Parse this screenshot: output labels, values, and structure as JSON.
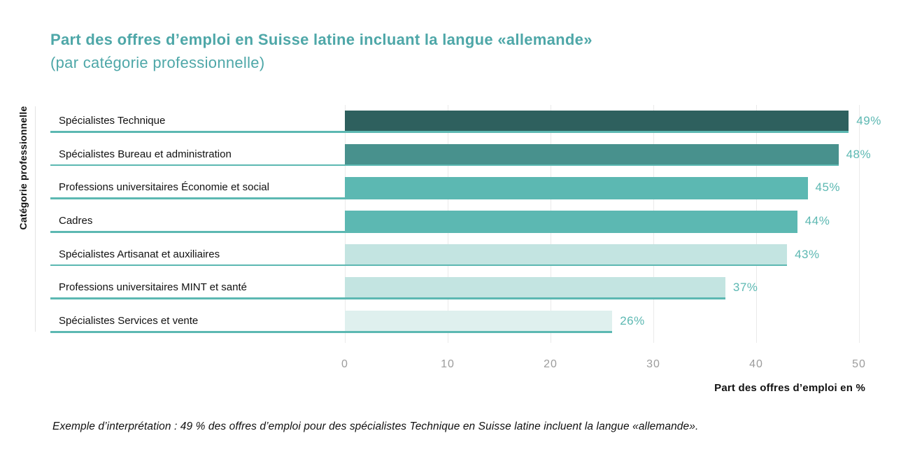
{
  "title": "Part des offres d’emploi en Suisse latine incluant la langue «allemande»",
  "subtitle": "(par catégorie professionnelle)",
  "note": "Exemple d’interprétation : 49 % des offres d’emploi pour des spécialistes Technique en Suisse latine incluent la langue «allemande».",
  "colors": {
    "title": "#4ea7a8",
    "accent_teal": "#5cb8b2",
    "underline": "#5cb8b2",
    "grid": "#eaeaea",
    "tick_text": "#9c9c9c",
    "category_text": "#111111",
    "note_text": "#111111"
  },
  "chart_data": {
    "type": "bar",
    "orientation": "horizontal",
    "title": "Part des offres d’emploi en Suisse latine incluant la langue «allemande»",
    "subtitle": "(par catégorie professionnelle)",
    "categories": [
      "Spécialistes Technique",
      "Spécialistes Bureau et administration",
      "Professions universitaires Économie et social",
      "Cadres",
      "Spécialistes Artisanat et auxiliaires",
      "Professions universitaires MINT et santé",
      "Spécialistes Services et vente"
    ],
    "values": [
      49,
      48,
      45,
      44,
      43,
      37,
      26
    ],
    "value_labels": [
      "49%",
      "48%",
      "45%",
      "44%",
      "43%",
      "37%",
      "26%"
    ],
    "bar_colors": [
      "#2e605e",
      "#48918d",
      "#5cb8b2",
      "#5cb8b2",
      "#c3e4e1",
      "#c3e4e1",
      "#dff0ee"
    ],
    "xlabel": "Part des offres d’emploi en %",
    "ylabel": "Catégorie professionnelle",
    "xlim": [
      0,
      50
    ],
    "xticks": [
      0,
      10,
      20,
      30,
      40,
      50
    ],
    "xtick_labels": [
      "0",
      "10",
      "20",
      "30",
      "40",
      "50"
    ],
    "grid": true,
    "legend": false
  }
}
